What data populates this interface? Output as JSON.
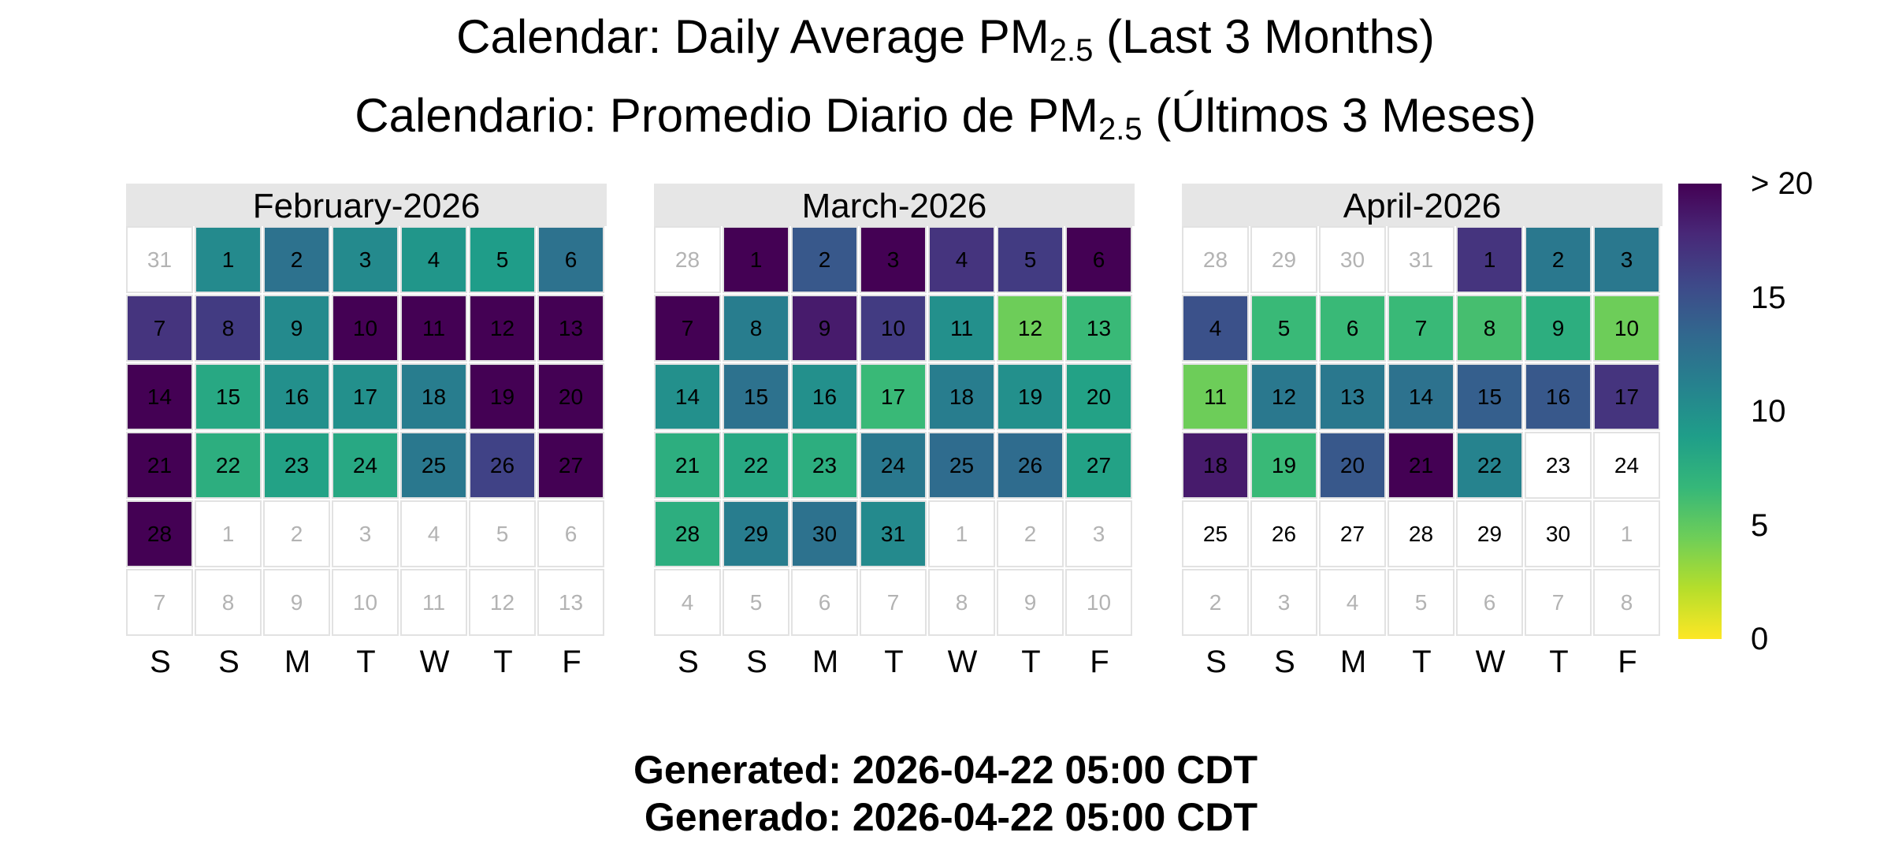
{
  "title_en": {
    "prefix": "Calendar: Daily Average PM",
    "sub": "2.5",
    "suffix": " (Last 3 Months)"
  },
  "title_es": {
    "prefix": "Calendario: Promedio Diario de PM",
    "sub": "2.5",
    "suffix": " (Últimos 3 Meses)"
  },
  "footer": {
    "generated_en": "Generated: 2026-04-22 05:00 CDT",
    "generated_es": " Generado: 2026-04-22 05:00 CDT"
  },
  "colors": {
    "scale": [
      "#fde725",
      "#b5de2b",
      "#6ece58",
      "#35b779",
      "#1f9e89",
      "#26828e",
      "#31688e",
      "#3e4989",
      "#482878",
      "#440154"
    ],
    "no_data": "#ffffff",
    "out_of_month_text": "#b3b3b3",
    "strip": "#e6e6e6"
  },
  "chart_data": {
    "type": "heatmap",
    "subtype": "calendar",
    "value_label": "PM2.5",
    "day_labels": [
      "S",
      "S",
      "M",
      "T",
      "W",
      "T",
      "F"
    ],
    "colorbar": {
      "ticks": [
        0,
        5,
        10,
        15,
        20
      ],
      "tick_labels": [
        "0",
        "5",
        "10",
        "15",
        "> 20"
      ],
      "range": [
        0,
        20
      ],
      "legend_position": "right"
    },
    "months": [
      {
        "label": "February-2026",
        "leading_days": [
          31
        ],
        "values": [
          10.5,
          12.5,
          10.5,
          9.5,
          9,
          12.5,
          17,
          16.5,
          10.5,
          20,
          20,
          20,
          20,
          20,
          8,
          10,
          10,
          11.5,
          20,
          20,
          20,
          7.5,
          8.5,
          8,
          12,
          16,
          20,
          20
        ],
        "trailing_days": [
          1,
          2,
          3,
          4,
          5,
          6,
          7,
          8,
          9,
          10,
          11,
          12,
          13
        ]
      },
      {
        "label": "March-2026",
        "leading_days": [
          28
        ],
        "values": [
          20,
          14.5,
          20,
          17,
          16.5,
          20,
          20,
          11.5,
          18.5,
          16.5,
          10,
          4.5,
          6.5,
          10,
          12.5,
          10,
          6.5,
          11.5,
          10,
          8.5,
          7.5,
          8,
          7.5,
          12,
          13,
          13,
          8.5,
          7.5,
          11.5,
          12.5,
          10.5
        ],
        "trailing_days": [
          1,
          2,
          3,
          4,
          5,
          6,
          7,
          8,
          9,
          10
        ]
      },
      {
        "label": "April-2026",
        "leading_days": [
          28,
          29,
          30,
          31
        ],
        "values": [
          17,
          12,
          12,
          15,
          6.5,
          6.5,
          6.5,
          6,
          7.5,
          4.5,
          4.5,
          12,
          12,
          12.5,
          14,
          14.5,
          17,
          18.5,
          6.5,
          14.5,
          20,
          11,
          null,
          null,
          null,
          null,
          null,
          null,
          null,
          null
        ],
        "trailing_days": [
          1,
          2,
          3,
          4,
          5,
          6,
          7,
          8
        ]
      }
    ]
  }
}
